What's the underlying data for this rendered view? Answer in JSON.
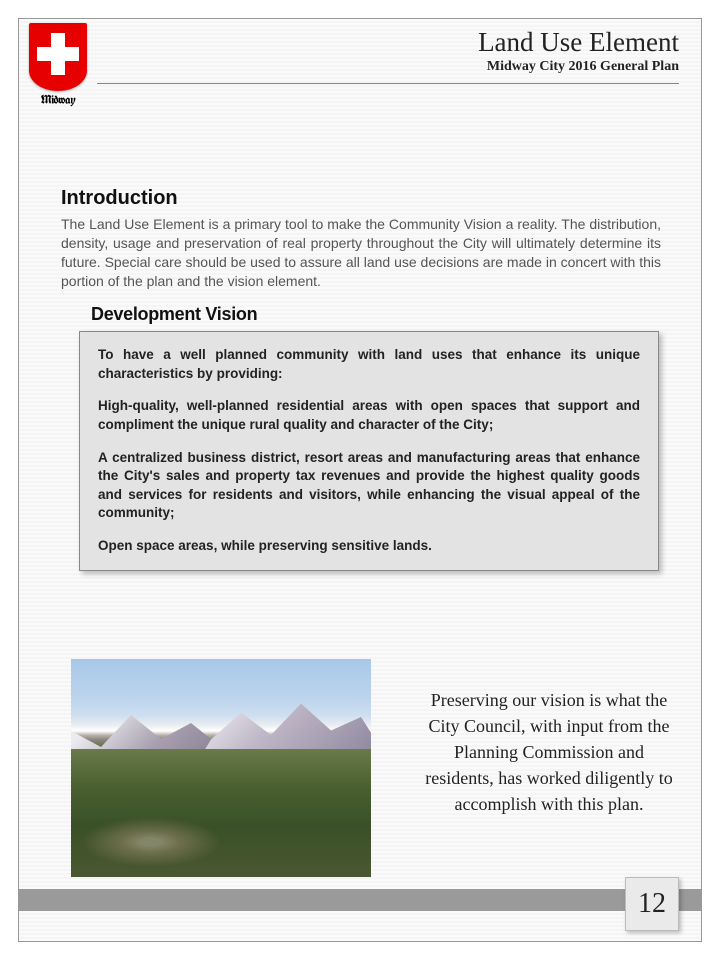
{
  "logo_label": "Midway",
  "header": {
    "title": "Land Use Element",
    "subtitle": "Midway City 2016 General Plan"
  },
  "intro": {
    "heading": "Introduction",
    "body": "The Land Use Element is a primary tool to make the Community Vision a reality. The distribution, density, usage and preservation of real property throughout the City will ultimately determine its future. Special care should be used to assure all land use decisions are made in concert with this portion of the plan and the vision element."
  },
  "dev_heading": "Development Vision",
  "vision": {
    "lead": "To have a well planned community with land uses that enhance its unique characteristics by providing:",
    "b1": "High-quality, well-planned residential areas with open spaces that support and compliment the unique rural quality and character of the City;",
    "b2": "A centralized business district, resort areas and manufacturing areas that enhance the City's sales and property tax revenues and provide the highest quality goods and services for residents and visitors, while enhancing the visual appeal of the community;",
    "b3": "Open space areas, while preserving sensitive lands."
  },
  "side_text": "Preserving our vision is what the City Council, with input from the Planning Commission and residents, has worked diligently to accomplish with this plan.",
  "page_number": "12"
}
